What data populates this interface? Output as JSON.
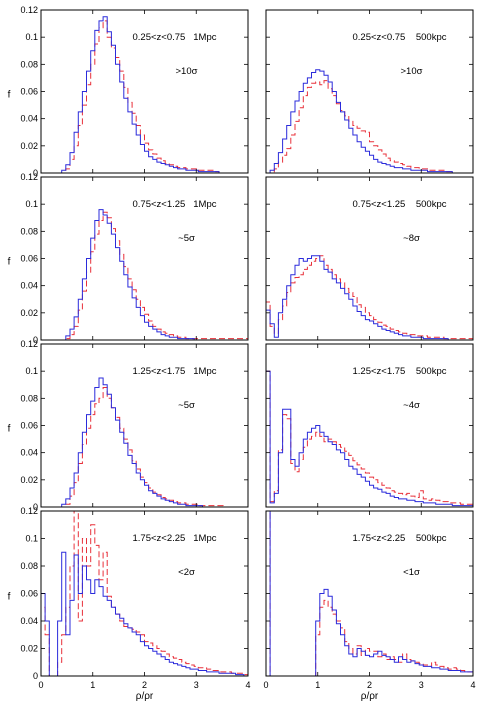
{
  "chart_data": {
    "type": "histogram-grid",
    "layout": {
      "rows": 4,
      "cols": 2
    },
    "xlabel": "ρ/ρr",
    "ylabel": "f",
    "xlim": [
      0,
      4
    ],
    "ylim": [
      0,
      0.12
    ],
    "xticks": [
      "0",
      "1",
      "2",
      "3",
      "4"
    ],
    "yticks": [
      "0",
      "0.02",
      "0.04",
      "0.06",
      "0.08",
      "0.1",
      "0.12"
    ],
    "series_styles": [
      {
        "color": "#2b2bdb",
        "dash": "none"
      },
      {
        "color": "#e8303a",
        "dash": "6,3"
      }
    ],
    "panels": [
      {
        "row": 0,
        "col": 0,
        "label": "0.25<z<0.75   1Mpc",
        "significance": ">10σ",
        "show_yticks": true,
        "blue": [
          0,
          0,
          0,
          0,
          0,
          0.002,
          0.006,
          0.015,
          0.03,
          0.045,
          0.06,
          0.075,
          0.09,
          0.105,
          0.112,
          0.115,
          0.104,
          0.094,
          0.08,
          0.067,
          0.055,
          0.045,
          0.036,
          0.028,
          0.021,
          0.016,
          0.012,
          0.01,
          0.008,
          0.007,
          0.006,
          0.005,
          0.004,
          0.003,
          0.003,
          0.002,
          0.002,
          0.002,
          0.001,
          0.001,
          0.001,
          0.001,
          0.001,
          0,
          0,
          0,
          0,
          0,
          0,
          0
        ],
        "red": [
          0,
          0,
          0,
          0,
          0,
          0,
          0.003,
          0.01,
          0.02,
          0.035,
          0.05,
          0.065,
          0.08,
          0.095,
          0.107,
          0.112,
          0.1,
          0.092,
          0.085,
          0.075,
          0.063,
          0.052,
          0.044,
          0.035,
          0.028,
          0.022,
          0.017,
          0.014,
          0.011,
          0.009,
          0.007,
          0.006,
          0.005,
          0.004,
          0.004,
          0.003,
          0.003,
          0.003,
          0.002,
          0.002,
          0.002,
          0.002,
          0.001,
          0,
          0,
          0,
          0,
          0,
          0,
          0
        ]
      },
      {
        "row": 0,
        "col": 1,
        "label": "0.25<z<0.75    500kpc",
        "significance": ">10σ",
        "show_yticks": false,
        "blue": [
          0,
          0.002,
          0.007,
          0.015,
          0.025,
          0.035,
          0.045,
          0.053,
          0.06,
          0.066,
          0.07,
          0.074,
          0.076,
          0.075,
          0.072,
          0.067,
          0.06,
          0.052,
          0.045,
          0.039,
          0.033,
          0.028,
          0.023,
          0.019,
          0.016,
          0.013,
          0.01,
          0.008,
          0.007,
          0.006,
          0.005,
          0.004,
          0.004,
          0.003,
          0.003,
          0.002,
          0.002,
          0.002,
          0.002,
          0.001,
          0.001,
          0.001,
          0.001,
          0.001,
          0.001,
          0,
          0,
          0,
          0,
          0
        ],
        "red": [
          0,
          0,
          0.003,
          0.008,
          0.013,
          0.018,
          0.028,
          0.038,
          0.048,
          0.057,
          0.063,
          0.066,
          0.067,
          0.065,
          0.068,
          0.062,
          0.057,
          0.051,
          0.046,
          0.042,
          0.038,
          0.035,
          0.033,
          0.031,
          0.03,
          0.023,
          0.02,
          0.017,
          0.014,
          0.011,
          0.009,
          0.008,
          0.007,
          0.006,
          0.005,
          0.004,
          0.004,
          0.003,
          0.003,
          0.002,
          0.002,
          0.002,
          0.002,
          0.001,
          0.001,
          0,
          0,
          0,
          0,
          0
        ]
      },
      {
        "row": 1,
        "col": 0,
        "label": "0.75<z<1.25   1Mpc",
        "significance": "~5σ",
        "show_yticks": true,
        "blue": [
          0,
          0,
          0,
          0,
          0,
          0,
          0.003,
          0.008,
          0.017,
          0.03,
          0.045,
          0.06,
          0.075,
          0.088,
          0.096,
          0.092,
          0.086,
          0.078,
          0.068,
          0.058,
          0.048,
          0.039,
          0.031,
          0.024,
          0.018,
          0.013,
          0.01,
          0.008,
          0.006,
          0.004,
          0.003,
          0.002,
          0.002,
          0.001,
          0.001,
          0.001,
          0.001,
          0,
          0,
          0,
          0,
          0,
          0,
          0,
          0,
          0,
          0,
          0,
          0,
          0
        ],
        "red": [
          0,
          0,
          0,
          0,
          0,
          0,
          0.001,
          0.004,
          0.01,
          0.022,
          0.036,
          0.05,
          0.065,
          0.078,
          0.088,
          0.094,
          0.09,
          0.082,
          0.073,
          0.063,
          0.054,
          0.045,
          0.037,
          0.03,
          0.024,
          0.019,
          0.014,
          0.01,
          0.008,
          0.006,
          0.005,
          0.004,
          0.003,
          0.002,
          0.002,
          0.001,
          0.001,
          0.001,
          0.001,
          0.001,
          0.001,
          0.001,
          0.001,
          0.001,
          0.001,
          0.001,
          0.001,
          0.001,
          0.001,
          0.001
        ]
      },
      {
        "row": 1,
        "col": 1,
        "label": "0.75<z<1.25    500kpc",
        "significance": "~8σ",
        "show_yticks": false,
        "blue": [
          0.022,
          0.012,
          0.002,
          0.02,
          0.03,
          0.04,
          0.048,
          0.055,
          0.06,
          0.058,
          0.06,
          0.062,
          0.062,
          0.058,
          0.052,
          0.05,
          0.045,
          0.042,
          0.038,
          0.034,
          0.03,
          0.025,
          0.021,
          0.018,
          0.015,
          0.014,
          0.012,
          0.01,
          0.008,
          0.007,
          0.006,
          0.005,
          0.004,
          0.003,
          0.003,
          0.002,
          0.002,
          0.002,
          0.001,
          0.001,
          0.001,
          0.001,
          0.001,
          0.001,
          0,
          0,
          0,
          0,
          0,
          0
        ],
        "red": [
          0.028,
          0.01,
          0.005,
          0.015,
          0.025,
          0.035,
          0.042,
          0.046,
          0.048,
          0.052,
          0.055,
          0.058,
          0.06,
          0.062,
          0.055,
          0.052,
          0.048,
          0.045,
          0.042,
          0.038,
          0.035,
          0.032,
          0.026,
          0.024,
          0.02,
          0.018,
          0.015,
          0.013,
          0.011,
          0.01,
          0.008,
          0.007,
          0.006,
          0.005,
          0.004,
          0.004,
          0.003,
          0.003,
          0.003,
          0.002,
          0.002,
          0.002,
          0.002,
          0.001,
          0.001,
          0.001,
          0.001,
          0.001,
          0.001,
          0.001
        ]
      },
      {
        "row": 2,
        "col": 0,
        "label": "1.25<z<1.75   1Mpc",
        "significance": "~5σ",
        "show_yticks": true,
        "blue": [
          0,
          0,
          0,
          0,
          0,
          0.002,
          0.006,
          0.014,
          0.025,
          0.04,
          0.055,
          0.068,
          0.078,
          0.088,
          0.095,
          0.09,
          0.083,
          0.073,
          0.064,
          0.055,
          0.047,
          0.038,
          0.032,
          0.025,
          0.02,
          0.016,
          0.012,
          0.01,
          0.008,
          0.006,
          0.005,
          0.004,
          0.003,
          0.002,
          0.002,
          0.001,
          0.001,
          0.001,
          0.001,
          0,
          0,
          0,
          0,
          0,
          0,
          0,
          0,
          0,
          0,
          0
        ],
        "red": [
          0,
          0,
          0,
          0,
          0,
          0,
          0.002,
          0.008,
          0.018,
          0.032,
          0.046,
          0.058,
          0.068,
          0.076,
          0.08,
          0.088,
          0.08,
          0.073,
          0.066,
          0.058,
          0.05,
          0.042,
          0.034,
          0.028,
          0.022,
          0.018,
          0.014,
          0.011,
          0.009,
          0.007,
          0.006,
          0.005,
          0.004,
          0.003,
          0.003,
          0.002,
          0.002,
          0.002,
          0.001,
          0.001,
          0.001,
          0.001,
          0.001,
          0.001,
          0,
          0,
          0,
          0,
          0,
          0
        ]
      },
      {
        "row": 2,
        "col": 1,
        "label": "1.25<z<1.75    500kpc",
        "significance": "~4σ",
        "show_yticks": false,
        "blue": [
          0.1,
          0.003,
          0.01,
          0.04,
          0.072,
          0.072,
          0.035,
          0.03,
          0.04,
          0.05,
          0.055,
          0.058,
          0.06,
          0.055,
          0.052,
          0.048,
          0.046,
          0.042,
          0.04,
          0.035,
          0.03,
          0.028,
          0.024,
          0.022,
          0.019,
          0.016,
          0.014,
          0.013,
          0.011,
          0.01,
          0.008,
          0.007,
          0.006,
          0.006,
          0.005,
          0.005,
          0.004,
          0.004,
          0.003,
          0.003,
          0.003,
          0.002,
          0.002,
          0.002,
          0.002,
          0.001,
          0.001,
          0.001,
          0.001,
          0.001
        ],
        "red": [
          0.1,
          0.004,
          0.012,
          0.042,
          0.068,
          0.065,
          0.032,
          0.026,
          0.035,
          0.044,
          0.05,
          0.052,
          0.055,
          0.052,
          0.048,
          0.05,
          0.048,
          0.046,
          0.044,
          0.041,
          0.038,
          0.034,
          0.031,
          0.028,
          0.025,
          0.022,
          0.02,
          0.018,
          0.016,
          0.014,
          0.012,
          0.011,
          0.01,
          0.009,
          0.01,
          0.008,
          0.007,
          0.012,
          0.006,
          0.005,
          0.006,
          0.005,
          0.004,
          0.004,
          0.003,
          0.003,
          0.003,
          0.002,
          0.002,
          0.002
        ]
      },
      {
        "row": 3,
        "col": 0,
        "label": "1.75<z<2.25   1Mpc",
        "significance": "<2σ",
        "show_yticks": true,
        "blue": [
          0.06,
          0.04,
          0,
          0,
          0.04,
          0.09,
          0.03,
          0.055,
          0.088,
          0.06,
          0.08,
          0.07,
          0.06,
          0.07,
          0.065,
          0.058,
          0.055,
          0.05,
          0.045,
          0.042,
          0.038,
          0.035,
          0.032,
          0.03,
          0.025,
          0.022,
          0.02,
          0.018,
          0.016,
          0.014,
          0.012,
          0.01,
          0.009,
          0.008,
          0.007,
          0.006,
          0.005,
          0.005,
          0.004,
          0.004,
          0.003,
          0.003,
          0.003,
          0.002,
          0.002,
          0.002,
          0.002,
          0.001,
          0.001,
          0
        ],
        "red": [
          0.05,
          0.03,
          0,
          0,
          0.01,
          0.03,
          0.05,
          0.08,
          0.12,
          0.04,
          0.1,
          0.08,
          0.11,
          0.095,
          0.07,
          0.09,
          0.058,
          0.05,
          0.045,
          0.04,
          0.036,
          0.035,
          0.034,
          0.032,
          0.03,
          0.025,
          0.024,
          0.022,
          0.02,
          0.018,
          0.016,
          0.014,
          0.013,
          0.012,
          0.01,
          0.009,
          0.008,
          0.007,
          0.006,
          0.006,
          0.005,
          0.004,
          0.004,
          0.003,
          0.003,
          0.003,
          0.002,
          0.002,
          0.002,
          0.001
        ]
      },
      {
        "row": 3,
        "col": 1,
        "label": "1.75<z<2.25    500kpc",
        "significance": "<1σ",
        "show_yticks": false,
        "blue": [
          0.12,
          0,
          0,
          0,
          0,
          0,
          0,
          0,
          0,
          0,
          0,
          0,
          0.04,
          0.06,
          0.063,
          0.058,
          0.048,
          0.038,
          0.03,
          0.022,
          0.016,
          0.014,
          0.02,
          0.018,
          0.015,
          0.014,
          0.016,
          0.018,
          0.015,
          0.014,
          0.012,
          0.01,
          0.014,
          0.012,
          0.01,
          0.011,
          0.009,
          0.008,
          0.007,
          0.007,
          0.006,
          0.006,
          0.005,
          0.005,
          0.004,
          0.004,
          0.004,
          0.003,
          0.003,
          0.003
        ],
        "red": [
          0.12,
          0,
          0,
          0,
          0,
          0,
          0,
          0,
          0,
          0,
          0,
          0,
          0.03,
          0.05,
          0.055,
          0.05,
          0.045,
          0.04,
          0.035,
          0.025,
          0.02,
          0.016,
          0.022,
          0.015,
          0.02,
          0.018,
          0.018,
          0.014,
          0.016,
          0.012,
          0.014,
          0.012,
          0.01,
          0.016,
          0.012,
          0.011,
          0.01,
          0.009,
          0.008,
          0.007,
          0.01,
          0.008,
          0.007,
          0.006,
          0.005,
          0.006,
          0.005,
          0.004,
          0.003,
          0.003
        ]
      }
    ]
  }
}
